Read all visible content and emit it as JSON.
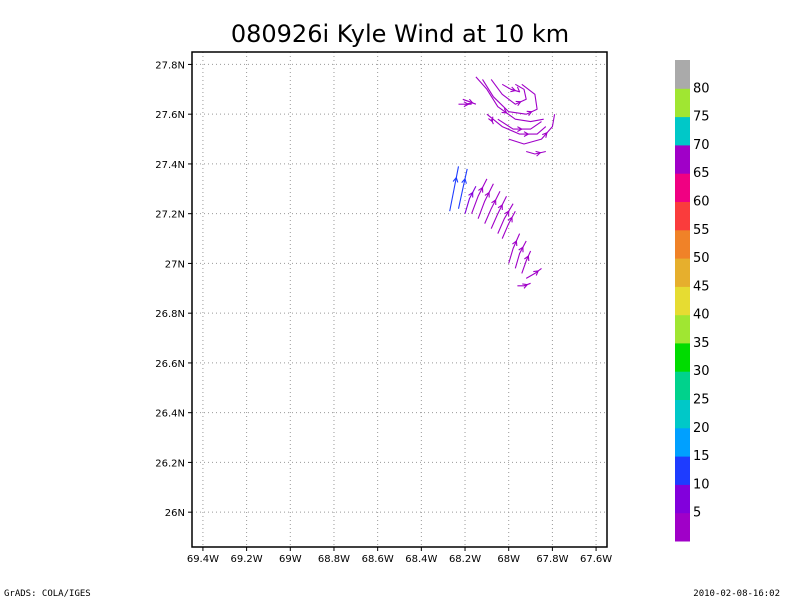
{
  "chart_data": {
    "type": "vector-field",
    "title": "080926i Kyle Wind at 10 km",
    "xlim": [
      -69.45,
      -67.55
    ],
    "ylim": [
      25.86,
      27.85
    ],
    "x_ticks": [
      {
        "value": -69.4,
        "label": "69.4W"
      },
      {
        "value": -69.2,
        "label": "69.2W"
      },
      {
        "value": -69.0,
        "label": "69W"
      },
      {
        "value": -68.8,
        "label": "68.8W"
      },
      {
        "value": -68.6,
        "label": "68.6W"
      },
      {
        "value": -68.4,
        "label": "68.4W"
      },
      {
        "value": -68.2,
        "label": "68.2W"
      },
      {
        "value": -68.0,
        "label": "68W"
      },
      {
        "value": -67.8,
        "label": "67.8W"
      },
      {
        "value": -67.6,
        "label": "67.6W"
      }
    ],
    "y_ticks": [
      {
        "value": 26.0,
        "label": "26N"
      },
      {
        "value": 26.2,
        "label": "26.2N"
      },
      {
        "value": 26.4,
        "label": "26.4N"
      },
      {
        "value": 26.6,
        "label": "26.6N"
      },
      {
        "value": 26.8,
        "label": "26.8N"
      },
      {
        "value": 27.0,
        "label": "27N"
      },
      {
        "value": 27.2,
        "label": "27.2N"
      },
      {
        "value": 27.4,
        "label": "27.4N"
      },
      {
        "value": 27.6,
        "label": "27.6N"
      },
      {
        "value": 27.8,
        "label": "27.8N"
      }
    ],
    "grid": true,
    "colorbar": {
      "levels": [
        "5",
        "10",
        "15",
        "20",
        "25",
        "30",
        "35",
        "40",
        "45",
        "50",
        "55",
        "60",
        "65",
        "70",
        "75",
        "80"
      ],
      "colors": [
        "#a000c8",
        "#8200dc",
        "#1e3cff",
        "#00a0ff",
        "#00c8c8",
        "#00d28c",
        "#00dc00",
        "#a0e632",
        "#e6dc32",
        "#e6af2d",
        "#f08228",
        "#fa3c3c",
        "#f00082",
        "#a000c8",
        "#00c8c8",
        "#a0e632",
        "#aaaaaa"
      ]
    },
    "streamlines": [
      {
        "color": "#a000c8",
        "points": [
          [
            -68.23,
            27.64
          ],
          [
            -68.2,
            27.64
          ],
          [
            -68.17,
            27.64
          ]
        ]
      },
      {
        "color": "#a000c8",
        "points": [
          [
            -68.21,
            27.66
          ],
          [
            -68.18,
            27.65
          ],
          [
            -68.15,
            27.64
          ]
        ]
      },
      {
        "color": "#a000c8",
        "points": [
          [
            -68.15,
            27.75
          ],
          [
            -68.1,
            27.7
          ],
          [
            -68.05,
            27.63
          ],
          [
            -67.97,
            27.58
          ],
          [
            -67.9,
            27.57
          ],
          [
            -67.84,
            27.58
          ]
        ]
      },
      {
        "color": "#a000c8",
        "points": [
          [
            -68.12,
            27.74
          ],
          [
            -68.07,
            27.67
          ],
          [
            -68.0,
            27.61
          ],
          [
            -67.92,
            27.6
          ],
          [
            -67.87,
            27.62
          ],
          [
            -67.88,
            27.68
          ],
          [
            -67.94,
            27.72
          ]
        ]
      },
      {
        "color": "#a000c8",
        "points": [
          [
            -68.08,
            27.74
          ],
          [
            -68.03,
            27.68
          ],
          [
            -67.97,
            27.64
          ],
          [
            -67.92,
            27.66
          ],
          [
            -67.93,
            27.7
          ],
          [
            -67.97,
            27.72
          ]
        ]
      },
      {
        "color": "#a000c8",
        "points": [
          [
            -68.03,
            27.72
          ],
          [
            -67.99,
            27.7
          ],
          [
            -67.95,
            27.69
          ],
          [
            -67.96,
            27.71
          ]
        ]
      },
      {
        "color": "#a000c8",
        "points": [
          [
            -68.1,
            27.6
          ],
          [
            -68.03,
            27.55
          ],
          [
            -67.95,
            27.52
          ],
          [
            -67.87,
            27.52
          ],
          [
            -67.83,
            27.55
          ]
        ]
      },
      {
        "color": "#a000c8",
        "points": [
          [
            -68.05,
            27.58
          ],
          [
            -67.98,
            27.54
          ],
          [
            -67.9,
            27.54
          ],
          [
            -67.85,
            27.57
          ]
        ]
      },
      {
        "color": "#a000c8",
        "points": [
          [
            -68.08,
            27.58
          ],
          [
            -68.07,
            27.56
          ]
        ]
      },
      {
        "color": "#a000c8",
        "points": [
          [
            -68.0,
            27.5
          ],
          [
            -67.93,
            27.48
          ],
          [
            -67.85,
            27.5
          ],
          [
            -67.8,
            27.55
          ],
          [
            -67.79,
            27.6
          ]
        ]
      },
      {
        "color": "#a000c8",
        "points": [
          [
            -67.92,
            27.45
          ],
          [
            -67.88,
            27.44
          ],
          [
            -67.83,
            27.45
          ]
        ]
      },
      {
        "color": "#1e3cff",
        "points": [
          [
            -68.27,
            27.21
          ],
          [
            -68.25,
            27.3
          ],
          [
            -68.23,
            27.39
          ]
        ]
      },
      {
        "color": "#1e3cff",
        "points": [
          [
            -68.23,
            27.22
          ],
          [
            -68.21,
            27.3
          ],
          [
            -68.19,
            27.38
          ]
        ]
      },
      {
        "color": "#8200dc",
        "points": [
          [
            -68.2,
            27.2
          ],
          [
            -68.18,
            27.26
          ],
          [
            -68.15,
            27.31
          ]
        ]
      },
      {
        "color": "#a000c8",
        "points": [
          [
            -68.17,
            27.2
          ],
          [
            -68.14,
            27.27
          ],
          [
            -68.1,
            27.34
          ]
        ]
      },
      {
        "color": "#a000c8",
        "points": [
          [
            -68.14,
            27.18
          ],
          [
            -68.11,
            27.25
          ],
          [
            -68.07,
            27.32
          ]
        ]
      },
      {
        "color": "#a000c8",
        "points": [
          [
            -68.11,
            27.16
          ],
          [
            -68.08,
            27.22
          ],
          [
            -68.04,
            27.29
          ]
        ]
      },
      {
        "color": "#a000c8",
        "points": [
          [
            -68.08,
            27.14
          ],
          [
            -68.05,
            27.2
          ],
          [
            -68.01,
            27.27
          ]
        ]
      },
      {
        "color": "#a000c8",
        "points": [
          [
            -68.05,
            27.12
          ],
          [
            -68.02,
            27.18
          ],
          [
            -67.98,
            27.24
          ]
        ]
      },
      {
        "color": "#a000c8",
        "points": [
          [
            -68.03,
            27.1
          ],
          [
            -68.0,
            27.16
          ],
          [
            -67.97,
            27.21
          ]
        ]
      },
      {
        "color": "#a000c8",
        "points": [
          [
            -68.0,
            27.0
          ],
          [
            -67.98,
            27.06
          ],
          [
            -67.95,
            27.12
          ]
        ]
      },
      {
        "color": "#a000c8",
        "points": [
          [
            -67.97,
            26.98
          ],
          [
            -67.95,
            27.04
          ],
          [
            -67.92,
            27.09
          ]
        ]
      },
      {
        "color": "#a000c8",
        "points": [
          [
            -67.94,
            26.96
          ],
          [
            -67.92,
            27.01
          ],
          [
            -67.9,
            27.05
          ]
        ]
      },
      {
        "color": "#a000c8",
        "points": [
          [
            -67.92,
            26.94
          ],
          [
            -67.88,
            26.96
          ],
          [
            -67.85,
            26.98
          ]
        ]
      },
      {
        "color": "#a000c8",
        "points": [
          [
            -67.96,
            26.91
          ],
          [
            -67.93,
            26.91
          ],
          [
            -67.9,
            26.92
          ]
        ]
      }
    ],
    "footer_left": "GrADS: COLA/IGES",
    "footer_right": "2010-02-08-16:02"
  }
}
